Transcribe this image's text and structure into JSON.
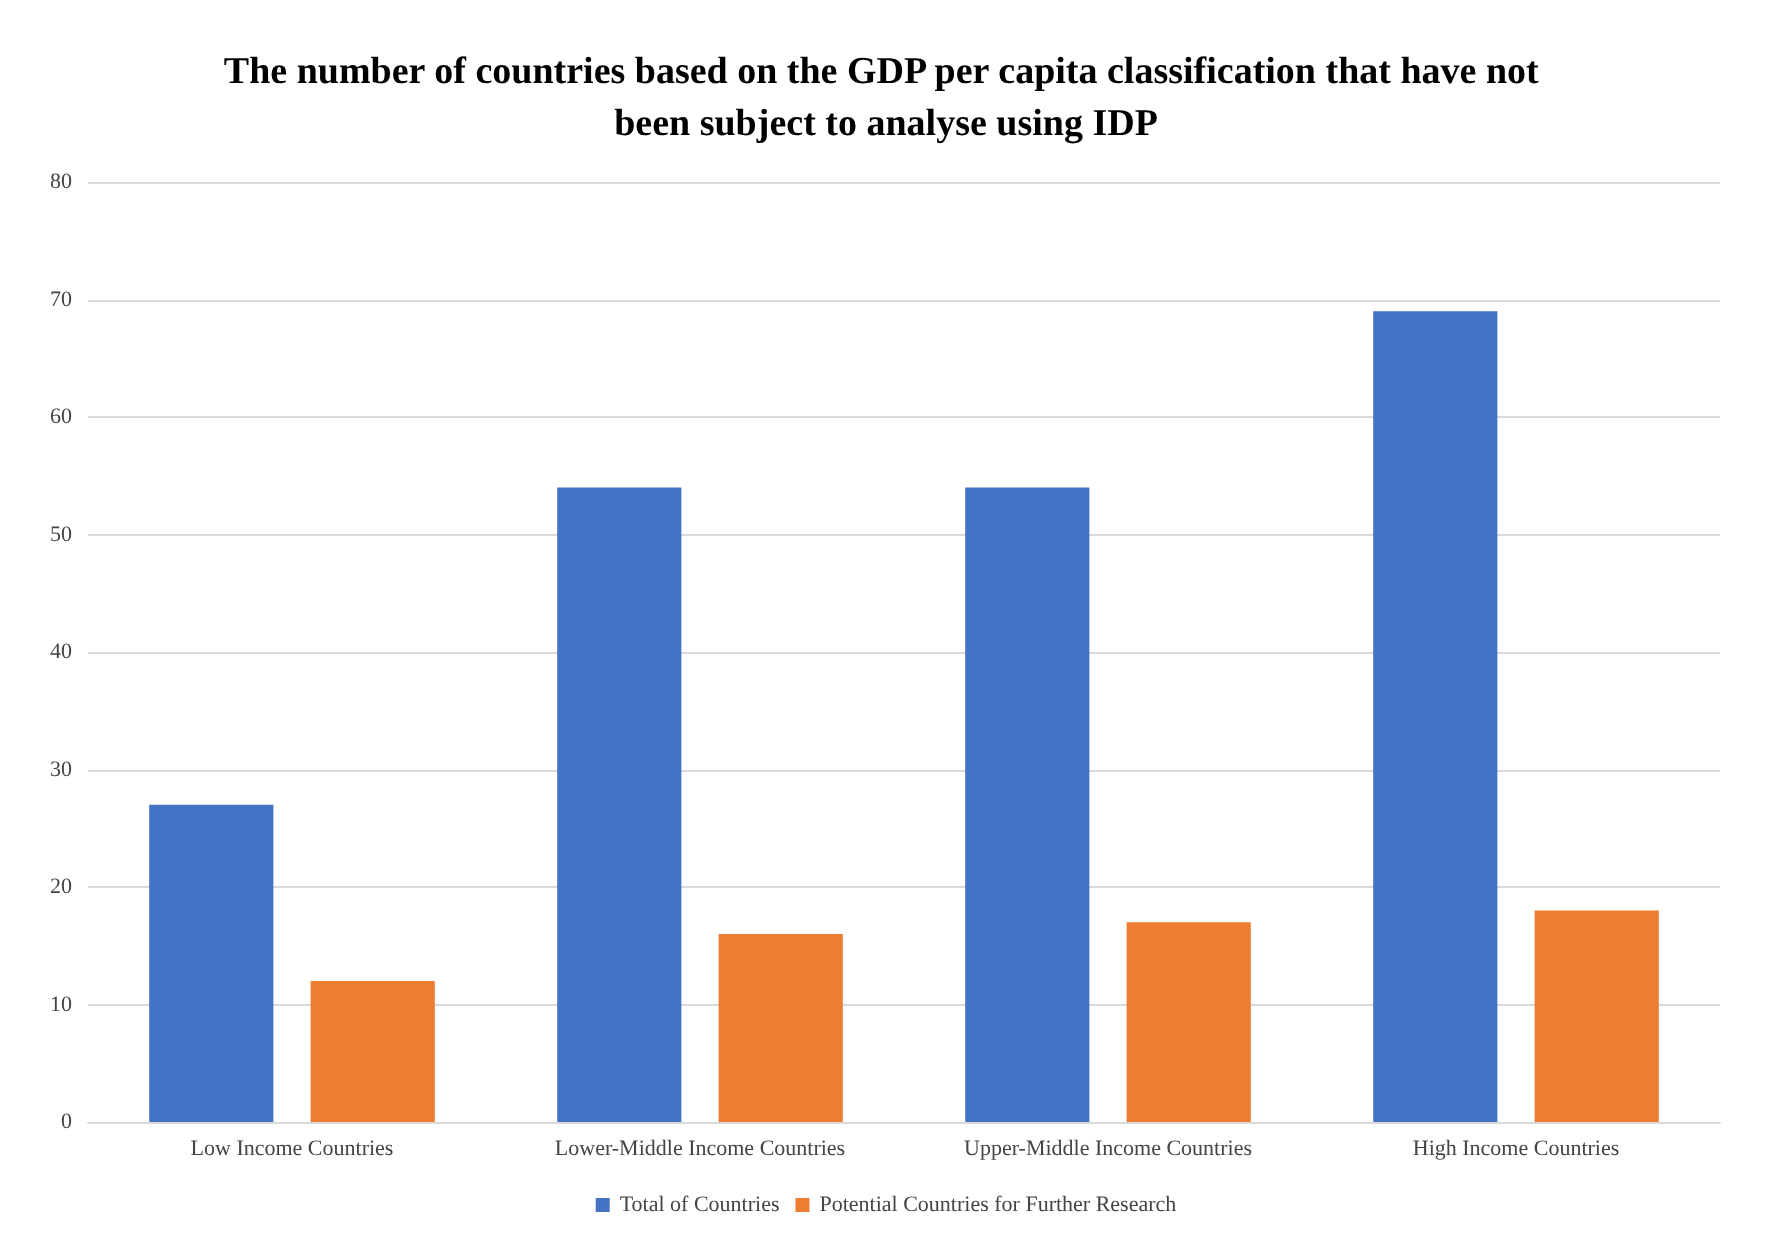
{
  "chart_data": {
    "type": "bar",
    "title": "The number of countries based on the GDP per capita classification that have not been subject to analyse using IDP",
    "categories": [
      "Low Income Countries",
      "Lower-Middle Income Countries",
      "Upper-Middle Income Countries",
      "High Income Countries"
    ],
    "series": [
      {
        "name": "Total of Countries",
        "color": "#4472c4",
        "values": [
          27,
          54,
          54,
          69
        ]
      },
      {
        "name": "Potential Countries for Further Research",
        "color": "#ed7d31",
        "values": [
          12,
          16,
          17,
          18
        ]
      }
    ],
    "ylim": [
      0,
      80
    ],
    "yticks": [
      0,
      10,
      20,
      30,
      40,
      50,
      60,
      70,
      80
    ],
    "grid": "y",
    "legend": "bottom"
  }
}
